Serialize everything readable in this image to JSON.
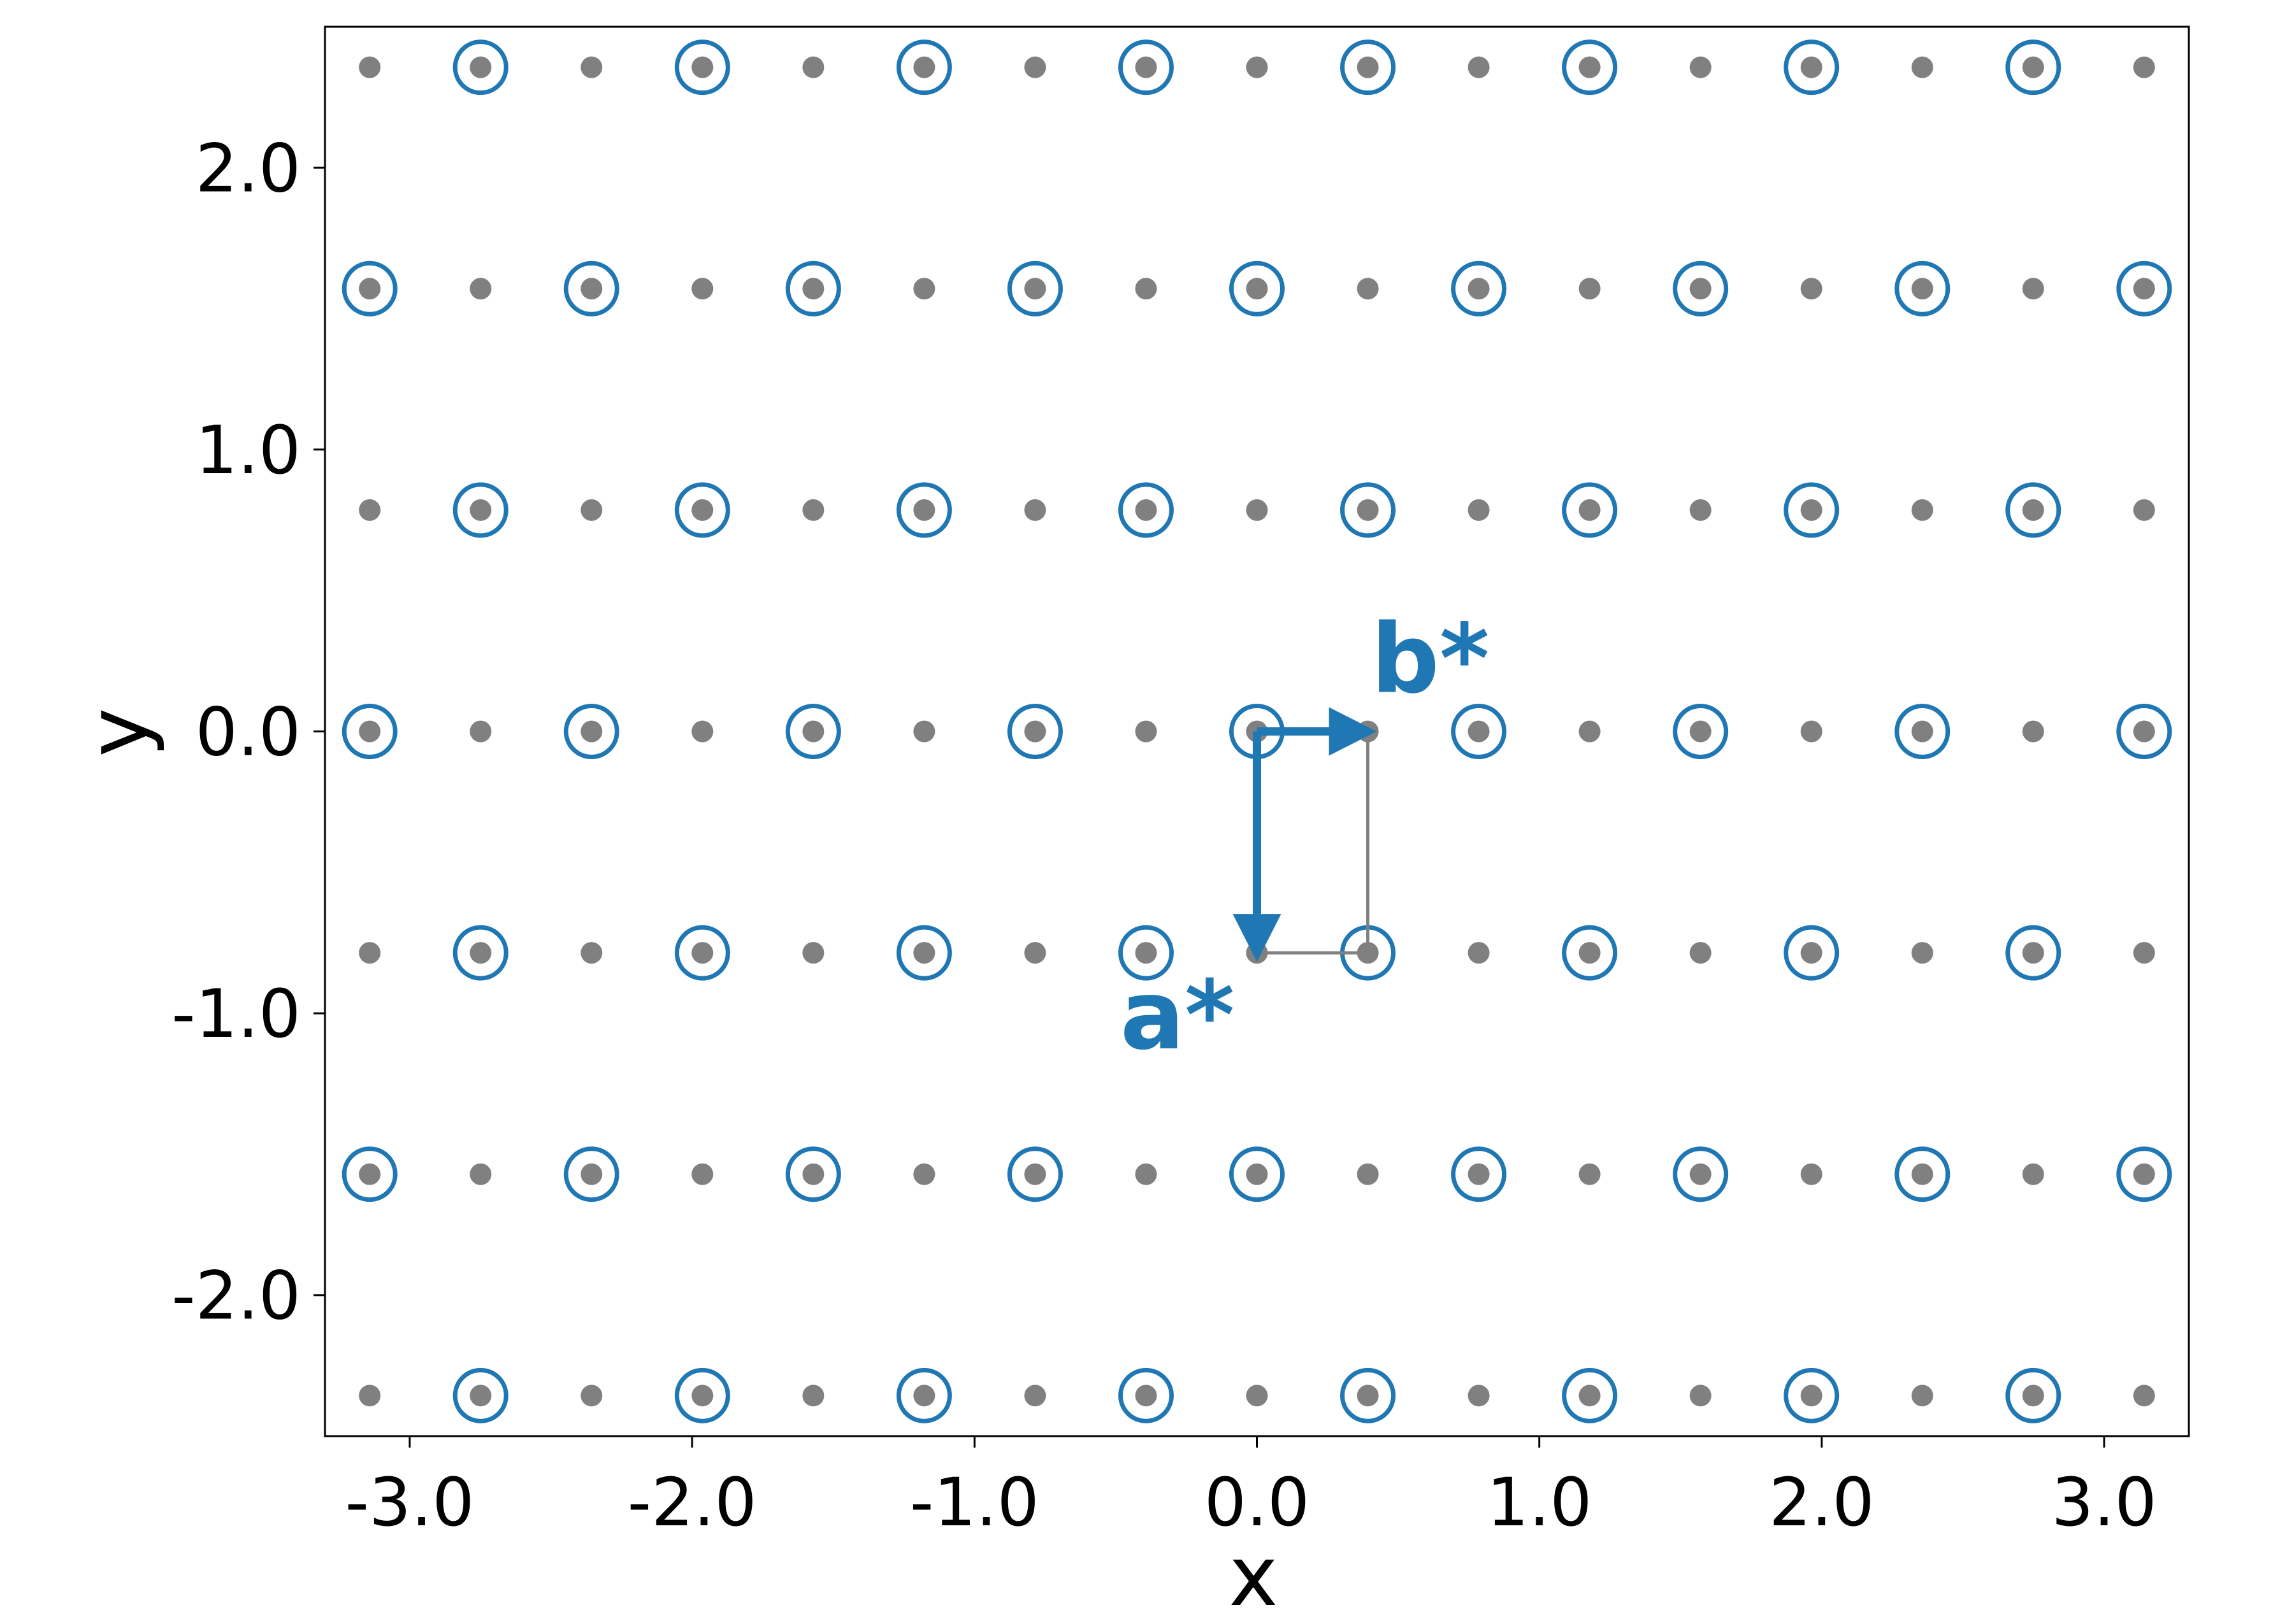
{
  "chart_data": {
    "type": "scatter",
    "title": "",
    "xlabel": "x",
    "ylabel": "y",
    "xlim": [
      -3.3,
      3.3
    ],
    "ylim": [
      -2.5,
      2.5
    ],
    "grid": false,
    "x_ticks": [
      -3.0,
      -2.0,
      -1.0,
      0.0,
      1.0,
      2.0,
      3.0
    ],
    "x_tick_labels": [
      "-3.0",
      "-2.0",
      "-1.0",
      "0.0",
      "1.0",
      "2.0",
      "3.0"
    ],
    "y_ticks": [
      -2.0,
      -1.0,
      0.0,
      1.0,
      2.0
    ],
    "y_tick_labels": [
      "-2.0",
      "-1.0",
      "0.0",
      "1.0",
      "2.0"
    ],
    "lattice": {
      "x_step": 0.3927,
      "y_step": 0.7854,
      "x_index_range": [
        -8,
        8
      ],
      "y_index_range": [
        -3,
        3
      ],
      "circled_rule": "ix + iy even"
    },
    "unit_cell": {
      "corners": [
        [
          0.0,
          0.0
        ],
        [
          0.3927,
          0.0
        ],
        [
          0.3927,
          -0.7854
        ],
        [
          0.0,
          -0.7854
        ]
      ]
    },
    "vectors": [
      {
        "label": "a*",
        "from": [
          0.0,
          0.0
        ],
        "to": [
          0.0,
          -0.7854
        ]
      },
      {
        "label": "b*",
        "from": [
          0.0,
          0.0
        ],
        "to": [
          0.3927,
          0.0
        ]
      }
    ],
    "colors": {
      "point": "#808080",
      "circle": "#1f77b4",
      "vector": "#1f77b4",
      "cell": "#808080"
    }
  }
}
